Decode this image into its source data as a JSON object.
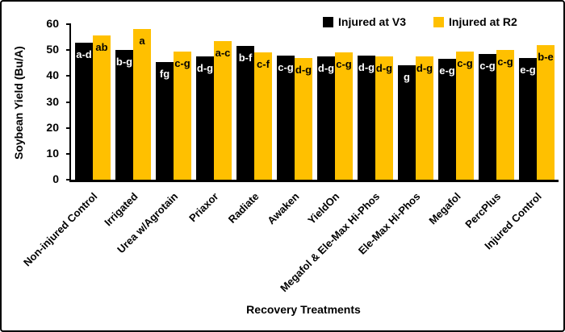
{
  "frame": {
    "background": "#ffffff",
    "border_color": "#000000"
  },
  "chart_data": {
    "type": "bar",
    "title": "",
    "xlabel": "Recovery Treatments",
    "ylabel": "Soybean Yield (Bu/A)",
    "ylim": [
      0,
      60
    ],
    "yticks": [
      0,
      10,
      20,
      30,
      40,
      50,
      60
    ],
    "grid": false,
    "legend_position": "top-center",
    "categories": [
      "Non-injured Control",
      "Irrigated",
      "Urea w/Agrotain",
      "Priaxor",
      "Radiate",
      "Awaken",
      "YieldOn",
      "Megafol & Ele-Max Hi-Phos",
      "Ele-Max Hi-Phos",
      "Megafol",
      "PercPlus",
      "Injured Control"
    ],
    "series": [
      {
        "name": "Injured at V3",
        "color": "#000000",
        "label_text_color": "#ffffff",
        "values": [
          53,
          50,
          45.5,
          47.5,
          51.5,
          48,
          47.5,
          48,
          44,
          46.5,
          48.5,
          47
        ],
        "bar_labels": [
          "a-d",
          "b-g",
          "fg",
          "d-g",
          "b-f",
          "c-g",
          "d-g",
          "d-g",
          "g",
          "e-g",
          "c-g",
          "e-g"
        ]
      },
      {
        "name": "Injured at R2",
        "color": "#ffc000",
        "label_text_color": "#000000",
        "values": [
          55.5,
          58,
          49.5,
          53.5,
          49,
          47,
          49,
          47.5,
          47.5,
          49.5,
          50,
          52
        ],
        "bar_labels": [
          "ab",
          "a",
          "c-g",
          "a-c",
          "c-f",
          "d-g",
          "c-g",
          "d-g",
          "d-g",
          "c-g",
          "c-g",
          "b-e"
        ]
      }
    ]
  }
}
